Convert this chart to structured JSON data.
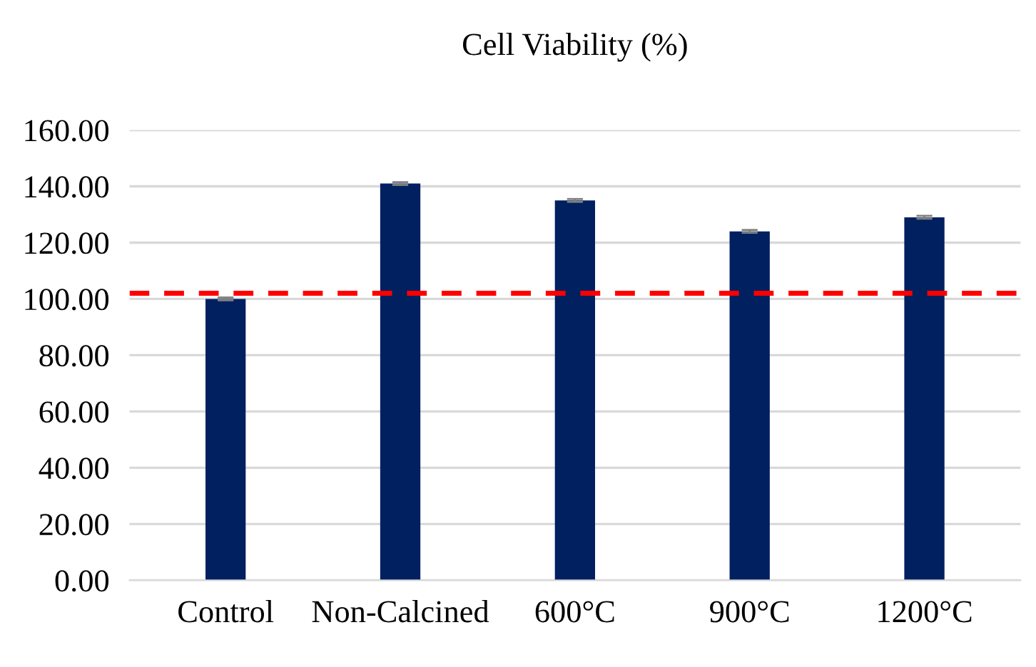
{
  "chart_data": {
    "type": "bar",
    "title": "Cell Viability (%)",
    "categories": [
      "Control",
      "Non-Calcined",
      "600°C",
      "900°C",
      "1200°C"
    ],
    "values": [
      100,
      141,
      135,
      124,
      129
    ],
    "errors": [
      0.5,
      0.5,
      0.5,
      0.5,
      0.5
    ],
    "color": "#002060",
    "ylim": [
      0,
      160
    ],
    "yticks": [
      {
        "value": 0,
        "label": "0.00"
      },
      {
        "value": 20,
        "label": "20.00"
      },
      {
        "value": 40,
        "label": "40.00"
      },
      {
        "value": 60,
        "label": "60.00"
      },
      {
        "value": 80,
        "label": "80.00"
      },
      {
        "value": 100,
        "label": "100.00"
      },
      {
        "value": 120,
        "label": "120.00"
      },
      {
        "value": 140,
        "label": "140.00"
      },
      {
        "value": 160,
        "label": "160.00"
      }
    ],
    "ref_lines": [
      {
        "axis": "y",
        "value": 102,
        "color": "#ff0000",
        "line_style": "dashed"
      }
    ],
    "grid": "y",
    "legend": false
  }
}
